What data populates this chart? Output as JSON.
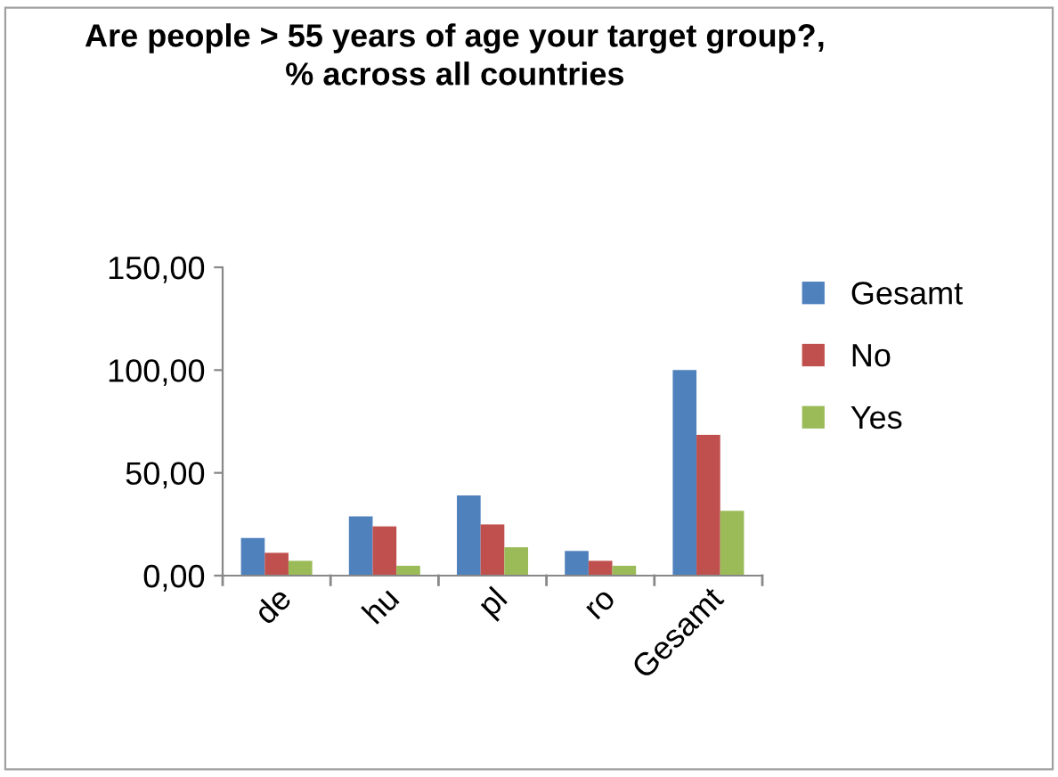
{
  "chart_data": {
    "type": "bar",
    "title": "Are people > 55 years of age your target group?,\n% across all countries",
    "categories": [
      "de",
      "hu",
      "pl",
      "ro",
      "Gesamt"
    ],
    "series": [
      {
        "name": "Gesamt",
        "color": "#4f81bd",
        "values": [
          18.3,
          28.8,
          39.0,
          12.0,
          100.0
        ]
      },
      {
        "name": "No",
        "color": "#c0504d",
        "values": [
          11.1,
          24.0,
          24.9,
          7.2,
          68.5
        ]
      },
      {
        "name": "Yes",
        "color": "#9bbb59",
        "values": [
          7.2,
          4.8,
          13.8,
          4.8,
          31.5
        ]
      }
    ],
    "ylim": [
      0,
      150
    ],
    "yticks": [
      {
        "value": 0,
        "label": "0,00"
      },
      {
        "value": 50,
        "label": "50,00"
      },
      {
        "value": 100,
        "label": "100,00"
      },
      {
        "value": 150,
        "label": "150,00"
      }
    ],
    "grid": false,
    "legend": "right"
  }
}
